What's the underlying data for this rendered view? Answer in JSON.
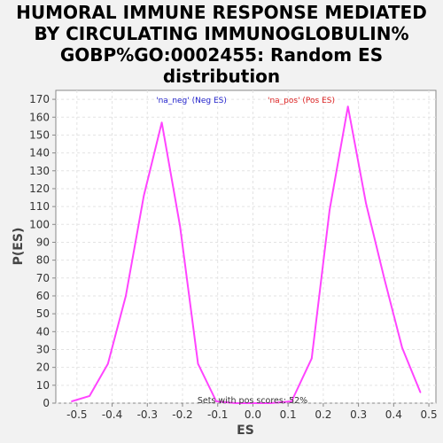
{
  "chart_data": {
    "type": "line",
    "title": "HUMORAL IMMUNE RESPONSE MEDIATED BY CIRCULATING IMMUNOGLOBULIN% GOBP%GO:0002455: Random ES distribution",
    "title_lines": [
      "HUMORAL IMMUNE RESPONSE MEDIATED",
      "BY CIRCULATING IMMUNOGLOBULIN%",
      "GOBP%GO:0002455: Random ES",
      "distribution"
    ],
    "xlabel": "ES",
    "ylabel": "P(ES)",
    "xlim": [
      -0.56,
      0.52
    ],
    "ylim": [
      0,
      175
    ],
    "xticks": [
      -0.5,
      -0.4,
      -0.3,
      -0.2,
      -0.1,
      0.0,
      0.1,
      0.2,
      0.3,
      0.4,
      0.5
    ],
    "xtick_labels": [
      "-0.5",
      "-0.4",
      "-0.3",
      "-0.2",
      "-0.1",
      "0.0",
      "0.1",
      "0.2",
      "0.3",
      "0.4",
      "0.5"
    ],
    "yticks": [
      0,
      10,
      20,
      30,
      40,
      50,
      60,
      70,
      80,
      90,
      100,
      110,
      120,
      130,
      140,
      150,
      160,
      170
    ],
    "grid": true,
    "series": [
      {
        "color": "#ff44ff",
        "x": [
          -0.515,
          -0.464,
          -0.412,
          -0.361,
          -0.31,
          -0.259,
          -0.207,
          -0.156,
          -0.104,
          -0.05,
          0.0,
          0.05,
          0.11,
          0.167,
          0.218,
          0.27,
          0.321,
          0.373,
          0.424,
          0.476
        ],
        "y": [
          1,
          4,
          22,
          60,
          116,
          157,
          99,
          22,
          1,
          0,
          0,
          0,
          1,
          25,
          108,
          166,
          112,
          70,
          31,
          6
        ]
      }
    ],
    "legend": [
      {
        "label": "'na_neg' (Neg ES)",
        "color": "#2222cc"
      },
      {
        "label": "'na_pos' (Pos ES)",
        "color": "#dd2222"
      }
    ],
    "annotation": "Sets with pos scores: 52%"
  }
}
